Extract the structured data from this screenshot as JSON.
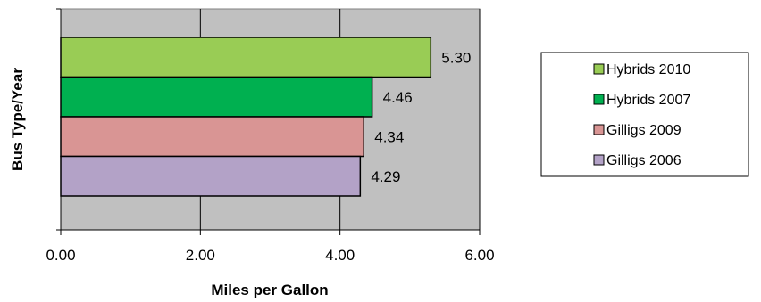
{
  "chart_data": {
    "type": "bar",
    "orientation": "horizontal",
    "xlabel": "Miles per Gallon",
    "ylabel": "Bus Type/Year",
    "xlim": [
      0,
      6
    ],
    "xticks": [
      "0.00",
      "2.00",
      "4.00",
      "6.00"
    ],
    "grid": "vertical",
    "legend_position": "right",
    "plot_background": "#c0c0c0",
    "categories": [
      "Hybrids 2010",
      "Hybrids 2007",
      "Gilligs 2009",
      "Gilligs 2006"
    ],
    "values": [
      5.3,
      4.46,
      4.34,
      4.29
    ],
    "data_labels": [
      "5.30",
      "4.46",
      "4.34",
      "4.29"
    ],
    "colors": [
      "#99cc55",
      "#00b050",
      "#d99594",
      "#b3a2c7"
    ]
  }
}
